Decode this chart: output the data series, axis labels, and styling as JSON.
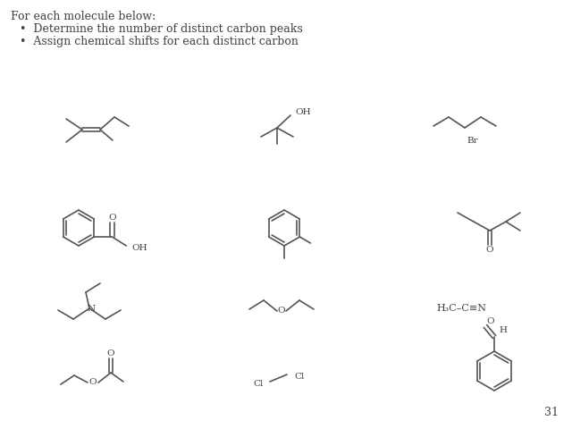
{
  "background": "#ffffff",
  "lc": "#555555",
  "tc": "#404040",
  "lw": 1.2,
  "page_num": "31",
  "header": "For each molecule below:",
  "bullet1": "Determine the number of distinct carbon peaks",
  "bullet2": "Assign chemical shifts for each distinct carbon",
  "font_size_header": 9,
  "font_size_mol": 7.5,
  "font_size_page": 9
}
